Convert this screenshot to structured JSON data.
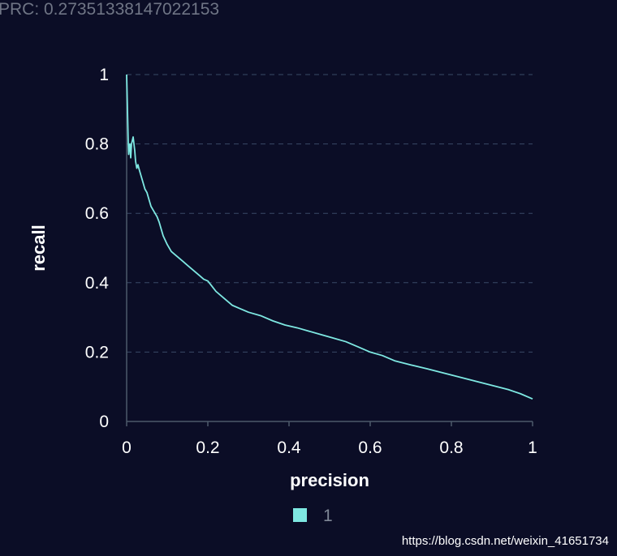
{
  "header": {
    "prc_text": "PRC:  0.27351338147022153"
  },
  "watermark": "https://blog.csdn.net/weixin_41651734",
  "colors": {
    "background": "#0b0d26",
    "series": "#7ee8e2",
    "axis": "#4c5a6a",
    "grid": "#3a4a66",
    "tick_text": "#ffffff",
    "legend_text": "#7f8796",
    "header_text": "#6f7585"
  },
  "chart_data": {
    "type": "line",
    "xlabel": "precision",
    "ylabel": "recall",
    "xlim": [
      0,
      1
    ],
    "ylim": [
      0,
      1
    ],
    "x_ticks": [
      "0",
      "0.2",
      "0.4",
      "0.6",
      "0.8",
      "1"
    ],
    "y_ticks": [
      "0",
      "0.2",
      "0.4",
      "0.6",
      "0.8",
      "1"
    ],
    "grid": "horizontal-dashed",
    "legend_position": "bottom-center",
    "series": [
      {
        "name": "1",
        "points": [
          [
            0.0,
            1.0
          ],
          [
            0.001,
            0.95
          ],
          [
            0.002,
            0.9
          ],
          [
            0.003,
            0.85
          ],
          [
            0.004,
            0.8
          ],
          [
            0.005,
            0.77
          ],
          [
            0.006,
            0.79
          ],
          [
            0.008,
            0.8
          ],
          [
            0.01,
            0.76
          ],
          [
            0.012,
            0.8
          ],
          [
            0.014,
            0.81
          ],
          [
            0.016,
            0.82
          ],
          [
            0.018,
            0.8
          ],
          [
            0.02,
            0.78
          ],
          [
            0.022,
            0.75
          ],
          [
            0.025,
            0.73
          ],
          [
            0.028,
            0.74
          ],
          [
            0.03,
            0.73
          ],
          [
            0.035,
            0.71
          ],
          [
            0.04,
            0.69
          ],
          [
            0.045,
            0.67
          ],
          [
            0.05,
            0.66
          ],
          [
            0.055,
            0.64
          ],
          [
            0.06,
            0.62
          ],
          [
            0.065,
            0.61
          ],
          [
            0.07,
            0.6
          ],
          [
            0.075,
            0.59
          ],
          [
            0.08,
            0.575
          ],
          [
            0.085,
            0.555
          ],
          [
            0.09,
            0.535
          ],
          [
            0.1,
            0.51
          ],
          [
            0.11,
            0.49
          ],
          [
            0.12,
            0.48
          ],
          [
            0.13,
            0.47
          ],
          [
            0.14,
            0.46
          ],
          [
            0.15,
            0.45
          ],
          [
            0.16,
            0.44
          ],
          [
            0.17,
            0.43
          ],
          [
            0.18,
            0.42
          ],
          [
            0.19,
            0.41
          ],
          [
            0.2,
            0.405
          ],
          [
            0.21,
            0.39
          ],
          [
            0.22,
            0.375
          ],
          [
            0.24,
            0.355
          ],
          [
            0.26,
            0.335
          ],
          [
            0.28,
            0.325
          ],
          [
            0.3,
            0.315
          ],
          [
            0.33,
            0.305
          ],
          [
            0.36,
            0.29
          ],
          [
            0.39,
            0.278
          ],
          [
            0.42,
            0.27
          ],
          [
            0.45,
            0.26
          ],
          [
            0.48,
            0.25
          ],
          [
            0.51,
            0.24
          ],
          [
            0.54,
            0.23
          ],
          [
            0.57,
            0.215
          ],
          [
            0.6,
            0.2
          ],
          [
            0.63,
            0.19
          ],
          [
            0.66,
            0.175
          ],
          [
            0.7,
            0.163
          ],
          [
            0.74,
            0.152
          ],
          [
            0.78,
            0.14
          ],
          [
            0.82,
            0.128
          ],
          [
            0.86,
            0.116
          ],
          [
            0.9,
            0.104
          ],
          [
            0.94,
            0.092
          ],
          [
            0.97,
            0.08
          ],
          [
            1.0,
            0.065
          ]
        ]
      }
    ]
  }
}
